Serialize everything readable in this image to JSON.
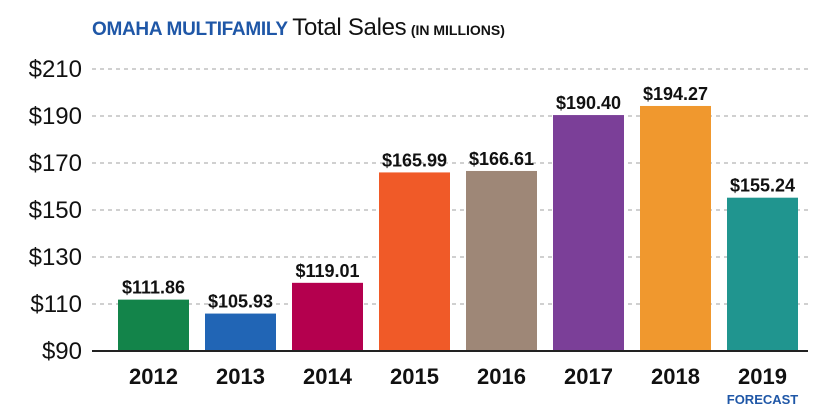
{
  "header": {
    "brand": "OMAHA MULTIFAMILY",
    "main": "Total Sales",
    "unit": "(IN MILLIONS)"
  },
  "chart_data": {
    "type": "bar",
    "title": "OMAHA MULTIFAMILY Total Sales (IN MILLIONS)",
    "xlabel": "",
    "ylabel": "",
    "categories": [
      "2012",
      "2013",
      "2014",
      "2015",
      "2016",
      "2017",
      "2018",
      "2019"
    ],
    "values": [
      111.86,
      105.93,
      119.01,
      165.99,
      166.61,
      190.4,
      194.27,
      155.24
    ],
    "value_labels": [
      "$111.86",
      "$105.93",
      "$119.01",
      "$165.99",
      "$166.61",
      "$190.40",
      "$194.27",
      "$155.24"
    ],
    "colors": [
      "#13844a",
      "#2165b5",
      "#b4004e",
      "#f05a28",
      "#9e8777",
      "#7b3f98",
      "#f0982e",
      "#20958f"
    ],
    "ylim": [
      90,
      210
    ],
    "yticks": [
      90,
      110,
      130,
      150,
      170,
      190,
      210
    ],
    "ytick_labels": [
      "$90",
      "$110",
      "$130",
      "$150",
      "$170",
      "$190",
      "$210"
    ],
    "grid": "horizontal dashed",
    "legend": "none",
    "annotations": [
      {
        "category": "2019",
        "text": "FORECAST"
      }
    ]
  }
}
